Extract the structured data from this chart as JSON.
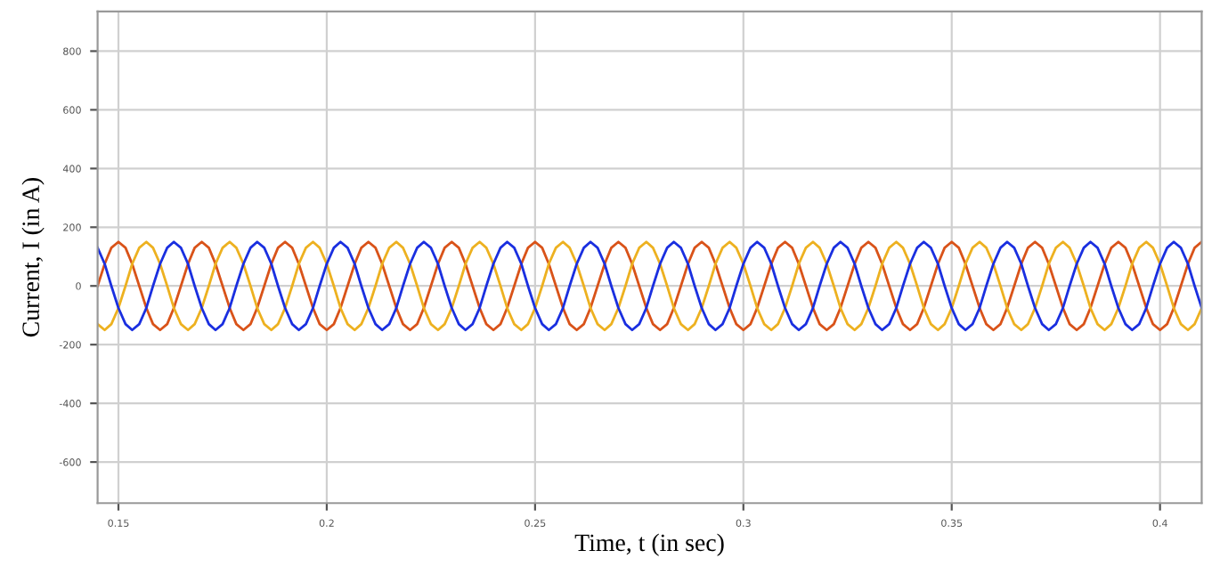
{
  "chart_data": {
    "type": "line",
    "xlabel": "Time, t (in sec)",
    "ylabel": "Current, I (in A)",
    "x": [
      0.145,
      0.1467,
      0.1483,
      0.15,
      0.1517,
      0.1533,
      0.155,
      0.1567,
      0.1583,
      0.16,
      0.1617,
      0.1633,
      0.165,
      0.1667,
      0.1683,
      0.17,
      0.1717,
      0.1733,
      0.175,
      0.1767,
      0.1783,
      0.18,
      0.1817,
      0.1833,
      0.185,
      0.1867,
      0.1883,
      0.19,
      0.1917,
      0.1933,
      0.195,
      0.1967,
      0.1983,
      0.2,
      0.2017,
      0.2033,
      0.205,
      0.2067,
      0.2083,
      0.21,
      0.2117,
      0.2133,
      0.215,
      0.2167,
      0.2183,
      0.22,
      0.2217,
      0.2233,
      0.225,
      0.2267,
      0.2283,
      0.23,
      0.2317,
      0.2333,
      0.235,
      0.2367,
      0.2383,
      0.24,
      0.2417,
      0.2433,
      0.245,
      0.2467,
      0.2483,
      0.25,
      0.2517,
      0.2533,
      0.255,
      0.2567,
      0.2583,
      0.26,
      0.2617,
      0.2633,
      0.265,
      0.2667,
      0.2683,
      0.27,
      0.2717,
      0.2733,
      0.275,
      0.2767,
      0.2783,
      0.28,
      0.2817,
      0.2833,
      0.285,
      0.2867,
      0.2883,
      0.29,
      0.2917,
      0.2933,
      0.295,
      0.2967,
      0.2983,
      0.3,
      0.3017,
      0.3033,
      0.305,
      0.3067,
      0.3083,
      0.31,
      0.3117,
      0.3133,
      0.315,
      0.3167,
      0.3183,
      0.32,
      0.3217,
      0.3233,
      0.325,
      0.3267,
      0.3283,
      0.33,
      0.3317,
      0.3333,
      0.335,
      0.3367,
      0.3383,
      0.34,
      0.3417,
      0.3433,
      0.345,
      0.3467,
      0.3483,
      0.35,
      0.3517,
      0.3533,
      0.355,
      0.3567,
      0.3583,
      0.36,
      0.3617,
      0.3633,
      0.365,
      0.3667,
      0.3683,
      0.37,
      0.3717,
      0.3733,
      0.375,
      0.3767,
      0.3783,
      0.38,
      0.3817,
      0.3833,
      0.385,
      0.3867,
      0.3883,
      0.39,
      0.3917,
      0.3933,
      0.395,
      0.3967,
      0.3983,
      0.4,
      0.4017,
      0.4033,
      0.405,
      0.4067,
      0.4083,
      0.41
    ],
    "series": [
      {
        "color": "#d95319",
        "values": [
          0,
          75,
          130,
          150,
          130,
          75,
          0,
          -75,
          -130,
          -150,
          -130,
          -75,
          0,
          75,
          130,
          150,
          130,
          75,
          0,
          -75,
          -130,
          -150,
          -130,
          -75,
          0,
          75,
          130,
          150,
          130,
          75,
          0,
          -75,
          -130,
          -150,
          -130,
          -75,
          0,
          75,
          130,
          150,
          130,
          75,
          0,
          -75,
          -130,
          -150,
          -130,
          -75,
          0,
          75,
          130,
          150,
          130,
          75,
          0,
          -75,
          -130,
          -150,
          -130,
          -75,
          0,
          75,
          130,
          150,
          130,
          75,
          0,
          -75,
          -130,
          -150,
          -130,
          -75,
          0,
          75,
          130,
          150,
          130,
          75,
          0,
          -75,
          -130,
          -150,
          -130,
          -75,
          0,
          75,
          130,
          150,
          130,
          75,
          0,
          -75,
          -130,
          -150,
          -130,
          -75,
          0,
          75,
          130,
          150,
          130,
          75,
          0,
          -75,
          -130,
          -150,
          -130,
          -75,
          0,
          75,
          130,
          150,
          130,
          75,
          0,
          -75,
          -130,
          -150,
          -130,
          -75,
          0,
          75,
          130,
          150,
          130,
          75,
          0,
          -75,
          -130,
          -150,
          -130,
          -75,
          0,
          75,
          130,
          150,
          130,
          75,
          0,
          -75,
          -130,
          -150,
          -130,
          -75,
          0,
          75,
          130,
          150,
          130,
          75,
          0,
          -75,
          -130,
          -150,
          -130,
          -75,
          0,
          75,
          130,
          150
        ]
      },
      {
        "color": "#edb120",
        "values": [
          -130,
          -150,
          -130,
          -75,
          0,
          75,
          130,
          150,
          130,
          75,
          0,
          -75,
          -130,
          -150,
          -130,
          -75,
          0,
          75,
          130,
          150,
          130,
          75,
          0,
          -75,
          -130,
          -150,
          -130,
          -75,
          0,
          75,
          130,
          150,
          130,
          75,
          0,
          -75,
          -130,
          -150,
          -130,
          -75,
          0,
          75,
          130,
          150,
          130,
          75,
          0,
          -75,
          -130,
          -150,
          -130,
          -75,
          0,
          75,
          130,
          150,
          130,
          75,
          0,
          -75,
          -130,
          -150,
          -130,
          -75,
          0,
          75,
          130,
          150,
          130,
          75,
          0,
          -75,
          -130,
          -150,
          -130,
          -75,
          0,
          75,
          130,
          150,
          130,
          75,
          0,
          -75,
          -130,
          -150,
          -130,
          -75,
          0,
          75,
          130,
          150,
          130,
          75,
          0,
          -75,
          -130,
          -150,
          -130,
          -75,
          0,
          75,
          130,
          150,
          130,
          75,
          0,
          -75,
          -130,
          -150,
          -130,
          -75,
          0,
          75,
          130,
          150,
          130,
          75,
          0,
          -75,
          -130,
          -150,
          -130,
          -75,
          0,
          75,
          130,
          150,
          130,
          75,
          0,
          -75,
          -130,
          -150,
          -130,
          -75,
          0,
          75,
          130,
          150,
          130,
          75,
          0,
          -75,
          -130,
          -150,
          -130,
          -75,
          0,
          75,
          130,
          150,
          130,
          75,
          0,
          -75,
          -130,
          -150,
          -130,
          -75
        ]
      },
      {
        "color": "#1a2fe0",
        "values": [
          130,
          75,
          0,
          -75,
          -130,
          -150,
          -130,
          -75,
          0,
          75,
          130,
          150,
          130,
          75,
          0,
          -75,
          -130,
          -150,
          -130,
          -75,
          0,
          75,
          130,
          150,
          130,
          75,
          0,
          -75,
          -130,
          -150,
          -130,
          -75,
          0,
          75,
          130,
          150,
          130,
          75,
          0,
          -75,
          -130,
          -150,
          -130,
          -75,
          0,
          75,
          130,
          150,
          130,
          75,
          0,
          -75,
          -130,
          -150,
          -130,
          -75,
          0,
          75,
          130,
          150,
          130,
          75,
          0,
          -75,
          -130,
          -150,
          -130,
          -75,
          0,
          75,
          130,
          150,
          130,
          75,
          0,
          -75,
          -130,
          -150,
          -130,
          -75,
          0,
          75,
          130,
          150,
          130,
          75,
          0,
          -75,
          -130,
          -150,
          -130,
          -75,
          0,
          75,
          130,
          150,
          130,
          75,
          0,
          -75,
          -130,
          -150,
          -130,
          -75,
          0,
          75,
          130,
          150,
          130,
          75,
          0,
          -75,
          -130,
          -150,
          -130,
          -75,
          0,
          75,
          130,
          150,
          130,
          75,
          0,
          -75,
          -130,
          -150,
          -130,
          -75,
          0,
          75,
          130,
          150,
          130,
          75,
          0,
          -75,
          -130,
          -150,
          -130,
          -75,
          0,
          75,
          130,
          150,
          130,
          75,
          0,
          -75,
          -130,
          -150,
          -130,
          -75,
          0,
          75,
          130,
          150,
          130,
          75,
          0,
          -75
        ]
      }
    ],
    "xlim": [
      0.145,
      0.41
    ],
    "ylim": [
      -740,
      935
    ],
    "xticks": [
      0.15,
      0.2,
      0.25,
      0.3,
      0.35,
      0.4
    ],
    "yticks": [
      -600,
      -400,
      -200,
      0,
      200,
      400,
      600,
      800
    ],
    "grid": true,
    "marker": "none",
    "line_style": "solid"
  }
}
